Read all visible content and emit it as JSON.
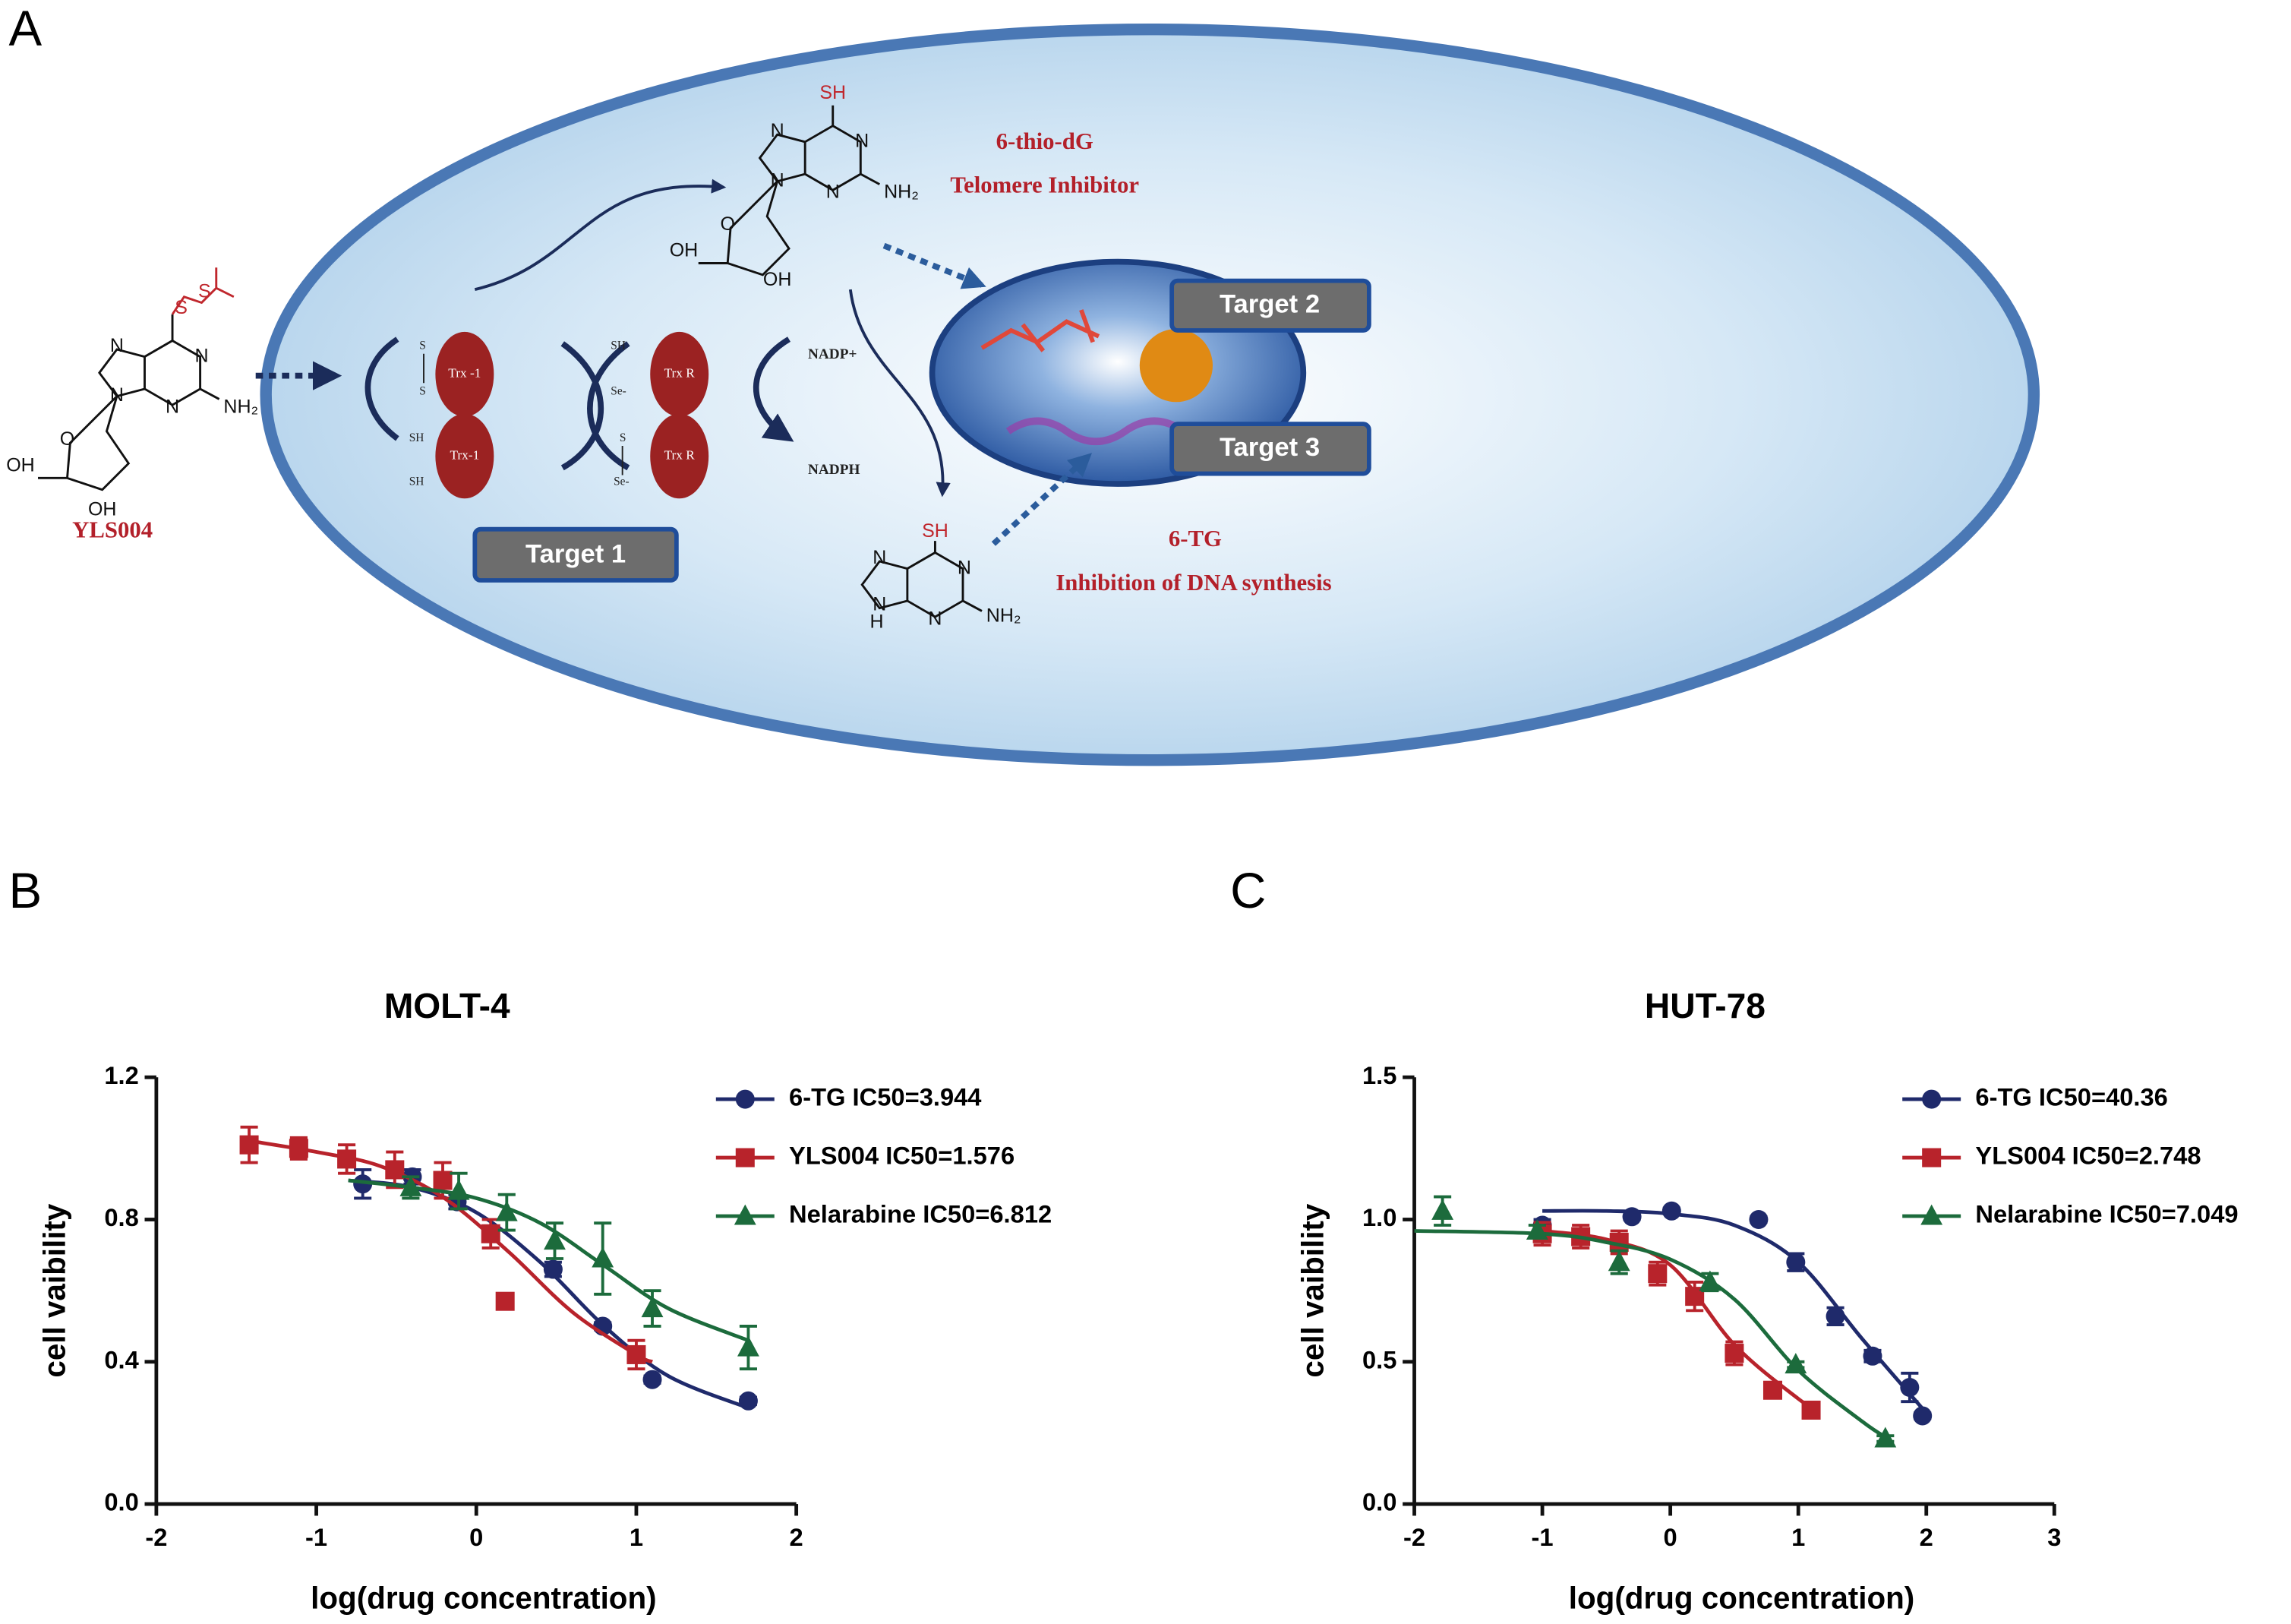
{
  "panel_labels": [
    "A",
    "B",
    "C"
  ],
  "diagram": {
    "prodrug": "YLS004",
    "metabolite_1": "6-thio-dG",
    "metabolite_1_role": "Telomere Inhibitor",
    "metabolite_2": "6-TG",
    "metabolite_2_role": "Inhibition of DNA synthesis",
    "targets": [
      "Target 1",
      "Target 2",
      "Target 3"
    ],
    "enzymes": [
      "Trx -1",
      "Trx-1",
      "Trx R",
      "Trx R"
    ],
    "cofactors": [
      "NADP+",
      "NADPH"
    ],
    "groups": [
      "S",
      "S",
      "SH",
      "SH",
      "SH",
      "Se-",
      "S",
      "Se-"
    ],
    "yls004_atoms": [
      "S",
      "S",
      "N",
      "N",
      "N",
      "N",
      "NH₂",
      "O",
      "OH",
      "OH"
    ],
    "thio_dg_atoms": [
      "SH",
      "N",
      "N",
      "N",
      "N",
      "NH₂",
      "O",
      "OH",
      "OH"
    ],
    "tg_atoms": [
      "SH",
      "N",
      "N",
      "N",
      "N",
      "H",
      "NH₂"
    ]
  },
  "chart_data": [
    {
      "type": "scatter",
      "title": "MOLT-4",
      "x_label": "log(drug concentration)",
      "y_label": "cell vaibility",
      "xlim": [
        -2,
        2
      ],
      "xticks": [
        -2,
        -1,
        0,
        1,
        2
      ],
      "ylim": [
        0,
        1.2
      ],
      "yticks": [
        {
          "value": 0,
          "label": "0.0"
        },
        0.4,
        0.8,
        1.2
      ],
      "legend": "upper right",
      "series": [
        {
          "name": "6-TG IC50=3.944",
          "color": "#1f2a6b",
          "marker": "circle",
          "x": [
            -0.71,
            -0.4,
            -0.12,
            0.48,
            0.79,
            1.1,
            1.7
          ],
          "values": [
            0.9,
            0.92,
            0.85,
            0.66,
            0.5,
            0.35,
            0.29
          ],
          "errors": [
            0.04,
            0.02,
            0.02,
            0.02,
            0.01,
            0.01,
            0.01
          ],
          "curve_x": [
            -0.8,
            -0.4,
            0,
            0.4,
            0.8,
            1.2,
            1.7
          ],
          "curve_values": [
            0.91,
            0.89,
            0.82,
            0.68,
            0.5,
            0.36,
            0.27
          ]
        },
        {
          "name": "YLS004 IC50=1.576",
          "color": "#b8232b",
          "marker": "square",
          "x": [
            -1.42,
            -1.11,
            -0.81,
            -0.51,
            -0.21,
            0.09,
            0.18,
            1.0
          ],
          "values": [
            1.01,
            1.0,
            0.97,
            0.94,
            0.91,
            0.76,
            0.57,
            0.42
          ],
          "errors": [
            0.05,
            0.03,
            0.04,
            0.05,
            0.05,
            0.04,
            0.01,
            0.04
          ],
          "curve_x": [
            -1.4,
            -1,
            -0.6,
            -0.2,
            0.2,
            0.6,
            1.0,
            1.1
          ],
          "curve_values": [
            1.02,
            0.99,
            0.95,
            0.86,
            0.71,
            0.54,
            0.42,
            0.4
          ]
        },
        {
          "name": "Nelarabine IC50=6.812",
          "color": "#1c6b3c",
          "marker": "triangle",
          "x": [
            -0.41,
            -0.11,
            0.19,
            0.49,
            0.79,
            1.1,
            1.7
          ],
          "values": [
            0.89,
            0.88,
            0.82,
            0.74,
            0.69,
            0.55,
            0.44
          ],
          "errors": [
            0.03,
            0.05,
            0.05,
            0.05,
            0.1,
            0.05,
            0.06
          ],
          "curve_x": [
            -0.8,
            -0.4,
            0,
            0.4,
            0.8,
            1.2,
            1.7
          ],
          "curve_values": [
            0.91,
            0.89,
            0.86,
            0.79,
            0.67,
            0.55,
            0.46
          ]
        }
      ]
    },
    {
      "type": "scatter",
      "title": "HUT-78",
      "x_label": "log(drug concentration)",
      "y_label": "cell vaibility",
      "xlim": [
        -2,
        3
      ],
      "xticks": [
        -2,
        -1,
        0,
        1,
        2,
        3
      ],
      "ylim": [
        0,
        1.5
      ],
      "yticks": [
        {
          "value": 0,
          "label": "0.0"
        },
        0.5,
        {
          "value": 1,
          "label": "1.0"
        },
        1.5
      ],
      "legend": "upper right",
      "series": [
        {
          "name": "6-TG IC50=40.36",
          "color": "#1f2a6b",
          "marker": "circle",
          "x": [
            -1.0,
            -0.3,
            0.01,
            0.69,
            0.98,
            1.29,
            1.58,
            1.87,
            1.97
          ],
          "values": [
            0.98,
            1.01,
            1.03,
            1.0,
            0.85,
            0.66,
            0.52,
            0.41,
            0.31
          ],
          "errors": [
            0.02,
            0.01,
            0.01,
            0.01,
            0.03,
            0.03,
            0.02,
            0.05,
            0.01
          ],
          "curve_x": [
            -1,
            -0.5,
            0,
            0.5,
            1,
            1.5,
            2
          ],
          "curve_values": [
            1.03,
            1.03,
            1.02,
            0.98,
            0.85,
            0.58,
            0.32
          ]
        },
        {
          "name": "YLS004 IC50=2.748",
          "color": "#b8232b",
          "marker": "square",
          "x": [
            -1.0,
            -0.7,
            -0.4,
            -0.1,
            0.19,
            0.5,
            0.8,
            1.1
          ],
          "values": [
            0.95,
            0.94,
            0.92,
            0.81,
            0.73,
            0.53,
            0.4,
            0.33
          ],
          "errors": [
            0.04,
            0.04,
            0.04,
            0.04,
            0.05,
            0.04,
            0.01,
            0.01
          ],
          "curve_x": [
            -1,
            -0.5,
            0,
            0.5,
            1,
            1.1
          ],
          "curve_values": [
            0.96,
            0.93,
            0.84,
            0.56,
            0.37,
            0.35
          ]
        },
        {
          "name": "Nelarabine IC50=7.049",
          "color": "#1c6b3c",
          "marker": "triangle",
          "x": [
            -1.78,
            -1.04,
            -0.4,
            0.31,
            0.98,
            1.68
          ],
          "values": [
            1.03,
            0.96,
            0.85,
            0.78,
            0.49,
            0.23
          ],
          "errors": [
            0.05,
            0.02,
            0.04,
            0.03,
            0.01,
            0.01
          ],
          "curve_x": [
            -2,
            -1,
            -0.5,
            0,
            0.5,
            1,
            1.5,
            1.7
          ],
          "curve_values": [
            0.96,
            0.95,
            0.92,
            0.86,
            0.72,
            0.47,
            0.29,
            0.23
          ]
        }
      ]
    }
  ]
}
